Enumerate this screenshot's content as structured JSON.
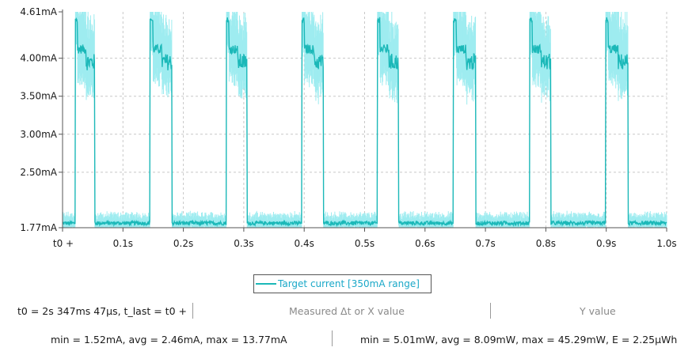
{
  "chart_data": {
    "type": "line",
    "title": "",
    "xlabel": "",
    "ylabel": "",
    "x_ticks": [
      "t0 +",
      "0.1s",
      "0.2s",
      "0.3s",
      "0.4s",
      "0.5s",
      "0.6s",
      "0.7s",
      "0.8s",
      "0.9s",
      "1.0s"
    ],
    "y_ticks": [
      "4.61mA",
      "4.00mA",
      "3.50mA",
      "3.00mA",
      "2.50mA",
      "1.77mA"
    ],
    "xlim": [
      0,
      1.0
    ],
    "ylim": [
      1.77,
      4.61
    ],
    "grid": true,
    "legend_placement": "bottom-center",
    "series": [
      {
        "name": "Target current [350mA range]",
        "color": "#1bb8b8",
        "noise_color": "#9eecf0",
        "pulse_period_s": 0.1255,
        "pulse_windows_s": [
          [
            0.021,
            0.053
          ],
          [
            0.145,
            0.181
          ],
          [
            0.271,
            0.305
          ],
          [
            0.396,
            0.432
          ],
          [
            0.521,
            0.556
          ],
          [
            0.647,
            0.684
          ],
          [
            0.773,
            0.808
          ],
          [
            0.899,
            0.936
          ]
        ],
        "high_peak_mA": 4.54,
        "high_plateau_mA": 4.12,
        "high_tail_mA": 3.95,
        "low_level_mA": 1.83
      }
    ]
  },
  "legend": {
    "label": "Target current [350mA range]"
  },
  "footer": {
    "t0_text": "t0 = 2s 347ms 47µs, t_last = t0 +",
    "measured_label": "Measured Δt or X value",
    "y_value_label": "Y value",
    "current_stats": "min = 1.52mA, avg = 2.46mA, max = 13.77mA",
    "power_stats": "min = 5.01mW, avg = 8.09mW, max = 45.29mW, E = 2.25µWh"
  }
}
